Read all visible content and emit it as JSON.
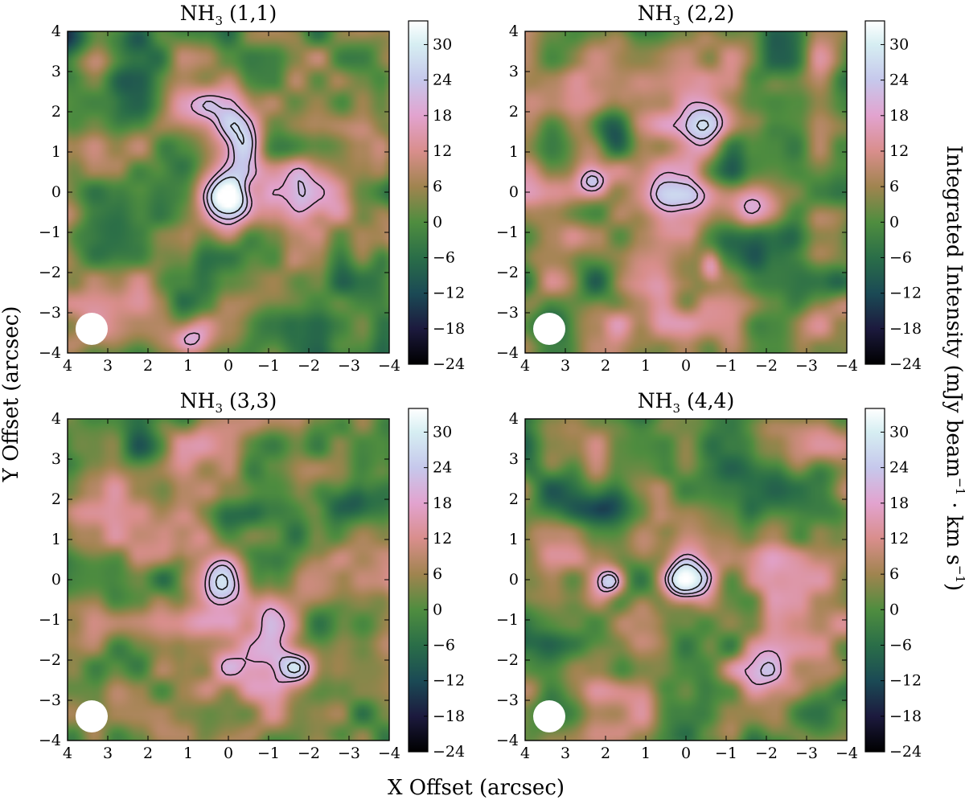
{
  "chart_data": {
    "type": "heatmap",
    "x_label": "X Offset (arcsec)",
    "y_label": "Y Offset (arcsec)",
    "colorbar_label": {
      "main": "Integrated Intensity (mJy beam",
      "exp1": "−1",
      "mid": " · km s",
      "exp2": "−1",
      "end": ")"
    },
    "xlim": [
      4,
      -4
    ],
    "ylim": [
      -4,
      4
    ],
    "x_ticks": [
      4,
      3,
      2,
      1,
      0,
      -1,
      -2,
      -3,
      -4
    ],
    "y_ticks": [
      -4,
      -3,
      -2,
      -1,
      0,
      1,
      2,
      3,
      4
    ],
    "x_tick_labels": [
      "4",
      "3",
      "2",
      "1",
      "0",
      "−1",
      "−2",
      "−3",
      "−4"
    ],
    "y_tick_labels": [
      "−4",
      "−3",
      "−2",
      "−1",
      "0",
      "1",
      "2",
      "3",
      "4"
    ],
    "colorbar_range": [
      -24,
      34
    ],
    "colorbar_ticks": [
      -24,
      -18,
      -12,
      -6,
      0,
      6,
      12,
      18,
      24,
      30
    ],
    "colorbar_tick_labels": [
      "−24",
      "−18",
      "−12",
      "−6",
      "0",
      "6",
      "12",
      "18",
      "24",
      "30"
    ],
    "colormap": [
      {
        "v": -24,
        "color": "#000000"
      },
      {
        "v": -18,
        "color": "#1c1a3e"
      },
      {
        "v": -12,
        "color": "#1b4a55"
      },
      {
        "v": -6,
        "color": "#2a6e48"
      },
      {
        "v": 0,
        "color": "#4f8d3f"
      },
      {
        "v": 6,
        "color": "#a0844f"
      },
      {
        "v": 12,
        "color": "#d98e8c"
      },
      {
        "v": 18,
        "color": "#e2a3cf"
      },
      {
        "v": 24,
        "color": "#c6c8ec"
      },
      {
        "v": 30,
        "color": "#d6eef2"
      },
      {
        "v": 34,
        "color": "#ffffff"
      }
    ],
    "beam_position_arcsec": [
      3.4,
      -3.4
    ],
    "panels": [
      {
        "title": {
          "mol": "NH",
          "sub": "3",
          "trans": " (1,1)"
        },
        "peaks": [
          {
            "x": 0.0,
            "y": -0.35,
            "amp": 32,
            "sx": 0.5,
            "sy": 0.6
          },
          {
            "x": -0.4,
            "y": 1.15,
            "amp": 20,
            "sx": 0.35,
            "sy": 0.45
          },
          {
            "x": 1.0,
            "y": -3.65,
            "amp": 19,
            "sx": 0.3,
            "sy": 0.3
          },
          {
            "x": -2.0,
            "y": 0.0,
            "amp": 13,
            "sx": 0.6,
            "sy": 1.0
          },
          {
            "x": 0.2,
            "y": 1.8,
            "amp": 10,
            "sx": 0.8,
            "sy": 0.5
          },
          {
            "x": 3.9,
            "y": 3.9,
            "amp": -16,
            "sx": 0.7,
            "sy": 0.5
          },
          {
            "x": 2.5,
            "y": -1.0,
            "amp": -8,
            "sx": 0.7,
            "sy": 0.7
          }
        ]
      },
      {
        "title": {
          "mol": "NH",
          "sub": "3",
          "trans": " (2,2)"
        },
        "peaks": [
          {
            "x": 0.05,
            "y": -0.15,
            "amp": 28,
            "sx": 0.55,
            "sy": 0.55
          },
          {
            "x": -0.6,
            "y": 1.6,
            "amp": 20,
            "sx": 0.45,
            "sy": 0.5
          },
          {
            "x": -1.5,
            "y": -0.4,
            "amp": 21,
            "sx": 0.55,
            "sy": 0.4
          },
          {
            "x": 2.3,
            "y": 0.3,
            "amp": 23,
            "sx": 0.3,
            "sy": 0.3
          },
          {
            "x": -0.6,
            "y": -1.8,
            "amp": 19,
            "sx": 0.2,
            "sy": 0.3
          },
          {
            "x": 1.8,
            "y": 1.5,
            "amp": -18,
            "sx": 0.35,
            "sy": 0.5
          },
          {
            "x": 0.5,
            "y": -2.5,
            "amp": 12,
            "sx": 1.0,
            "sy": 0.6
          }
        ]
      },
      {
        "title": {
          "mol": "NH",
          "sub": "3",
          "trans": " (3,3)"
        },
        "peaks": [
          {
            "x": 0.2,
            "y": 0.0,
            "amp": 34,
            "sx": 0.5,
            "sy": 0.55
          },
          {
            "x": -1.75,
            "y": -2.2,
            "amp": 20,
            "sx": 0.35,
            "sy": 0.3
          },
          {
            "x": -0.5,
            "y": -1.2,
            "amp": 14,
            "sx": 1.0,
            "sy": 0.8
          },
          {
            "x": -3.0,
            "y": 2.0,
            "amp": -18,
            "sx": 0.6,
            "sy": 0.4
          },
          {
            "x": 2.3,
            "y": -2.0,
            "amp": -12,
            "sx": 0.5,
            "sy": 0.5
          }
        ]
      },
      {
        "title": {
          "mol": "NH",
          "sub": "3",
          "trans": " (4,4)"
        },
        "peaks": [
          {
            "x": 0.05,
            "y": -0.05,
            "amp": 21,
            "sx": 0.35,
            "sy": 0.4
          },
          {
            "x": 1.85,
            "y": -0.05,
            "amp": 20,
            "sx": 0.25,
            "sy": 0.25
          },
          {
            "x": -1.55,
            "y": -2.25,
            "amp": 20,
            "sx": 0.5,
            "sy": 0.3
          },
          {
            "x": -0.5,
            "y": 0.5,
            "amp": 13,
            "sx": 1.0,
            "sy": 0.8
          },
          {
            "x": 2.0,
            "y": 1.8,
            "amp": -14,
            "sx": 0.6,
            "sy": 0.35
          },
          {
            "x": 3.5,
            "y": -1.5,
            "amp": -12,
            "sx": 0.6,
            "sy": 0.8
          }
        ]
      }
    ]
  }
}
